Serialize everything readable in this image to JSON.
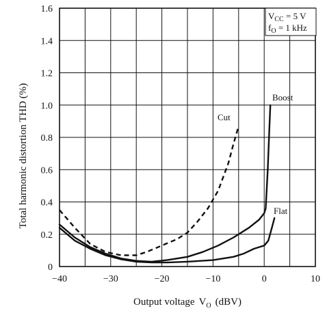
{
  "chart_data": {
    "type": "line",
    "title": "",
    "xlabel": "Output voltage",
    "xlabel_symbol": "V",
    "xlabel_symbol_sub": "O",
    "xlabel_unit": "(dBV)",
    "ylabel": "Total harmonic distortion THD (%)",
    "xlim": [
      -40,
      10
    ],
    "ylim": [
      0,
      1.6
    ],
    "x_ticks": [
      -40,
      -35,
      -30,
      -25,
      -20,
      -15,
      -10,
      -5,
      0,
      5,
      10
    ],
    "x_tick_labels": [
      "−40",
      "",
      "−30",
      "",
      "−20",
      "",
      "−10",
      "",
      "0",
      "",
      "10"
    ],
    "y_ticks": [
      0,
      0.2,
      0.4,
      0.6,
      0.8,
      1.0,
      1.2,
      1.4,
      1.6
    ],
    "y_tick_labels": [
      "0",
      "0.2",
      "0.4",
      "0.6",
      "0.8",
      "1.0",
      "1.2",
      "1.4",
      "1.6"
    ],
    "grid": true,
    "conditions": {
      "vcc_symbol": "V",
      "vcc_sub": "CC",
      "vcc_value": " = 5 V",
      "fo_symbol": "f",
      "fo_sub": "O",
      "fo_value": " = 1 kHz"
    },
    "series": [
      {
        "name": "Cut",
        "style": "dashed",
        "color": "#111111",
        "points": [
          [
            -40,
            0.35
          ],
          [
            -37,
            0.24
          ],
          [
            -34,
            0.14
          ],
          [
            -31,
            0.09
          ],
          [
            -28,
            0.07
          ],
          [
            -25,
            0.07
          ],
          [
            -23,
            0.09
          ],
          [
            -20,
            0.13
          ],
          [
            -17,
            0.17
          ],
          [
            -15,
            0.21
          ],
          [
            -13,
            0.28
          ],
          [
            -11,
            0.36
          ],
          [
            -9,
            0.47
          ],
          [
            -7,
            0.64
          ],
          [
            -6,
            0.76
          ],
          [
            -5,
            0.87
          ]
        ]
      },
      {
        "name": "Boost",
        "style": "solid",
        "color": "#111111",
        "points": [
          [
            -40,
            0.26
          ],
          [
            -37,
            0.18
          ],
          [
            -34,
            0.12
          ],
          [
            -31,
            0.08
          ],
          [
            -28,
            0.05
          ],
          [
            -25,
            0.035
          ],
          [
            -22,
            0.03
          ],
          [
            -19,
            0.04
          ],
          [
            -15,
            0.06
          ],
          [
            -12,
            0.09
          ],
          [
            -9,
            0.13
          ],
          [
            -6,
            0.18
          ],
          [
            -3,
            0.24
          ],
          [
            -1,
            0.29
          ],
          [
            0,
            0.33
          ],
          [
            0.3,
            0.36
          ],
          [
            0.7,
            0.6
          ],
          [
            1.0,
            0.85
          ],
          [
            1.2,
            1.0
          ]
        ]
      },
      {
        "name": "Flat",
        "style": "solid",
        "color": "#111111",
        "points": [
          [
            -40,
            0.24
          ],
          [
            -37,
            0.16
          ],
          [
            -34,
            0.11
          ],
          [
            -31,
            0.07
          ],
          [
            -28,
            0.045
          ],
          [
            -25,
            0.03
          ],
          [
            -22,
            0.025
          ],
          [
            -19,
            0.025
          ],
          [
            -15,
            0.03
          ],
          [
            -10,
            0.04
          ],
          [
            -6,
            0.06
          ],
          [
            -4,
            0.08
          ],
          [
            -2,
            0.11
          ],
          [
            0,
            0.13
          ],
          [
            0.8,
            0.16
          ],
          [
            1.5,
            0.24
          ],
          [
            2,
            0.3
          ]
        ]
      }
    ]
  }
}
